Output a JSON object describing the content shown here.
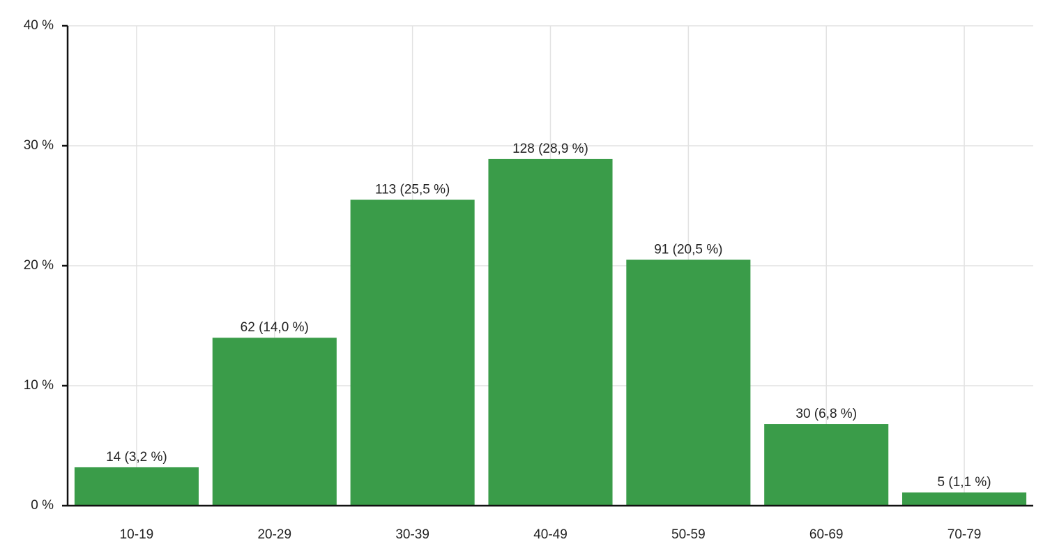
{
  "chart_data": {
    "type": "bar",
    "categories": [
      "10-19",
      "20-29",
      "30-39",
      "40-49",
      "50-59",
      "60-69",
      "70-79"
    ],
    "values": [
      3.2,
      14.0,
      25.5,
      28.9,
      20.5,
      6.8,
      1.1
    ],
    "value_labels": [
      "14 (3,2 %)",
      "62 (14,0 %)",
      "113 (25,5 %)",
      "128 (28,9 %)",
      "91 (20,5 %)",
      "30 (6,8 %)",
      "5 (1,1 %)"
    ],
    "color": "#3a9c49",
    "ylim": [
      0,
      40
    ],
    "yticks": [
      {
        "value": 0,
        "label": "0 %"
      },
      {
        "value": 10,
        "label": "10 %"
      },
      {
        "value": 20,
        "label": "20 %"
      },
      {
        "value": 30,
        "label": "30 %"
      },
      {
        "value": 40,
        "label": "40 %"
      }
    ],
    "grid": true
  }
}
